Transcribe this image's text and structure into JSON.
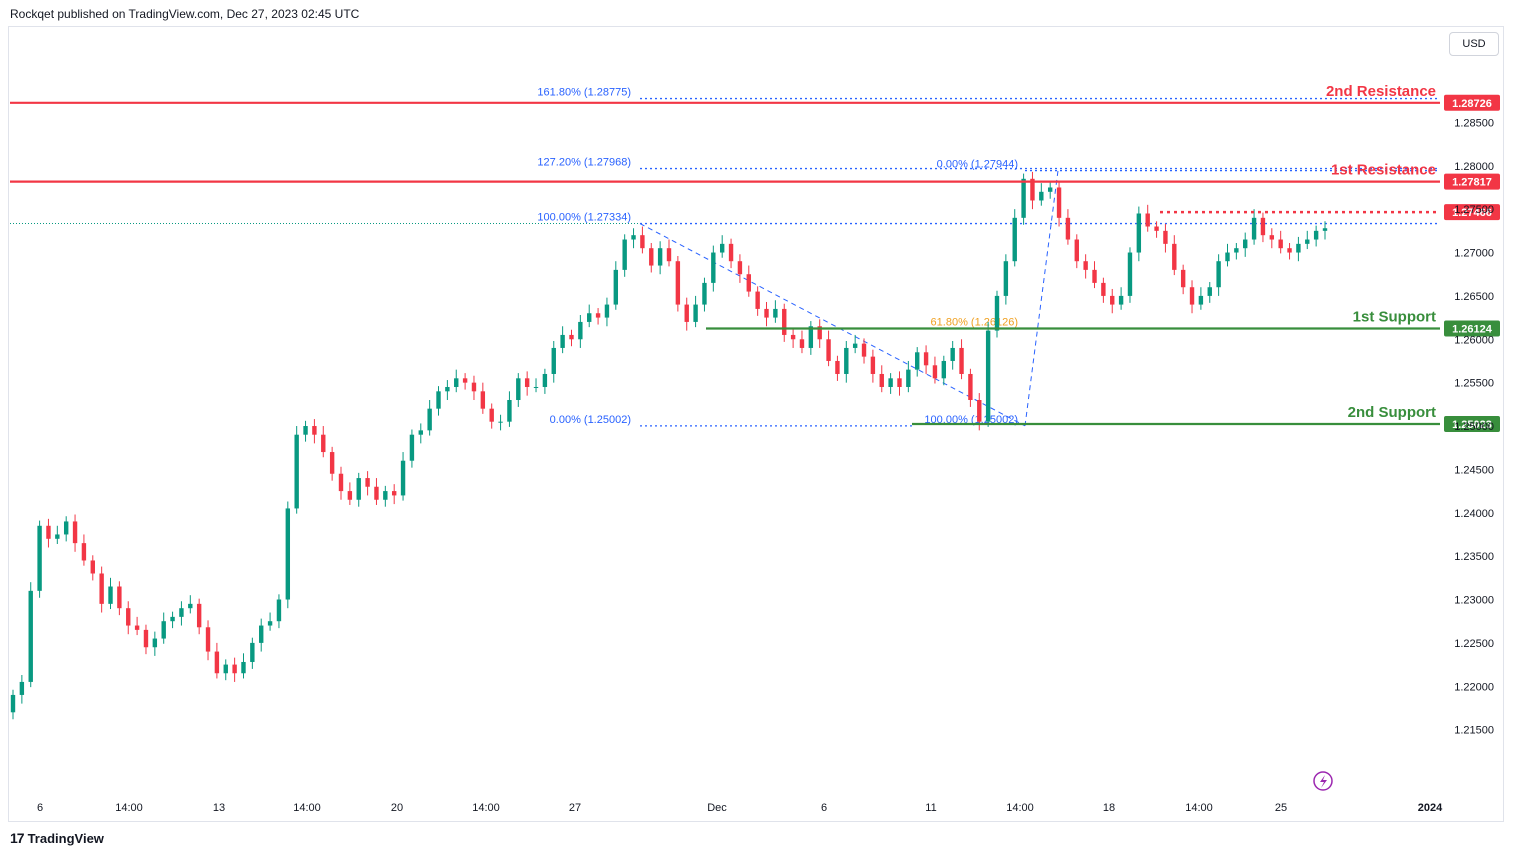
{
  "header": {
    "attribution": "Rockqet published on TradingView.com, Dec 27, 2023 02:45 UTC",
    "currency_button": "USD"
  },
  "footer": {
    "brand": "TradingView"
  },
  "colors": {
    "up": "#089981",
    "down": "#f23645",
    "resistance": "#f23645",
    "support": "#388e3c",
    "fib": "#2962ff",
    "fib_mid": "#f0a020",
    "axis_text": "#131722"
  },
  "chart_data": {
    "type": "candlestick",
    "title": "",
    "y_axis": {
      "ticks": [
        "1.28500",
        "1.28000",
        "1.27500",
        "1.27000",
        "1.26500",
        "1.26000",
        "1.25500",
        "1.25000",
        "1.24500",
        "1.24000",
        "1.23500",
        "1.23000",
        "1.22500",
        "1.22000",
        "1.21500"
      ],
      "range": [
        1.2115,
        1.2945
      ]
    },
    "x_axis": {
      "ticks": [
        "6",
        "14:00",
        "13",
        "14:00",
        "20",
        "14:00",
        "27",
        "Dec",
        "6",
        "11",
        "14:00",
        "18",
        "14:00",
        "25",
        "2024"
      ]
    },
    "levels": [
      {
        "name": "2nd Resistance",
        "price_label": "1.28726",
        "value": 1.28726,
        "kind": "resistance"
      },
      {
        "name": "1st Resistance",
        "price_label": "1.27817",
        "value": 1.27817,
        "kind": "resistance"
      },
      {
        "name": "",
        "price_label": "1.27466",
        "value": 1.27466,
        "kind": "resistance-dotted"
      },
      {
        "name": "1st Support",
        "price_label": "1.26124",
        "value": 1.26124,
        "kind": "support"
      },
      {
        "name": "2nd Support",
        "price_label": "1.25023",
        "value": 1.25023,
        "kind": "support"
      }
    ],
    "fib_labels": [
      {
        "text": "161.80% (1.28775)",
        "value": 1.28775
      },
      {
        "text": "127.20% (1.27968)",
        "value": 1.27968
      },
      {
        "text": "100.00% (1.27334)",
        "value": 1.27334
      },
      {
        "text": "0.00% (1.25002)",
        "value": 1.25002
      },
      {
        "text": "0.00% (1.27944)",
        "value": 1.27944
      },
      {
        "text": "61.80% (1.26126)",
        "value": 1.26126
      },
      {
        "text": "100.00% (1.25002)",
        "value": 1.25002
      }
    ],
    "close_path": [
      1.219,
      1.2205,
      1.231,
      1.2385,
      1.237,
      1.2375,
      1.239,
      1.2365,
      1.2345,
      1.233,
      1.2295,
      1.2315,
      1.229,
      1.227,
      1.2265,
      1.2245,
      1.2255,
      1.2275,
      1.228,
      1.229,
      1.2295,
      1.2268,
      1.224,
      1.2215,
      1.2225,
      1.2215,
      1.2228,
      1.225,
      1.227,
      1.2275,
      1.23,
      1.2405,
      1.249,
      1.25,
      1.249,
      1.247,
      1.2445,
      1.2425,
      1.2415,
      1.244,
      1.243,
      1.2415,
      1.2425,
      1.242,
      1.246,
      1.249,
      1.2495,
      1.252,
      1.254,
      1.2545,
      1.2555,
      1.255,
      1.254,
      1.252,
      1.2505,
      1.2505,
      1.253,
      1.2555,
      1.2545,
      1.2545,
      1.256,
      1.259,
      1.2605,
      1.26,
      1.262,
      1.263,
      1.2625,
      1.264,
      1.268,
      1.2715,
      1.272,
      1.2705,
      1.2685,
      1.2705,
      1.269,
      1.264,
      1.262,
      1.264,
      1.2665,
      1.27,
      1.271,
      1.269,
      1.2675,
      1.2655,
      1.2635,
      1.2625,
      1.2635,
      1.2605,
      1.26,
      1.259,
      1.2615,
      1.26,
      1.2575,
      1.256,
      1.259,
      1.2595,
      1.258,
      1.256,
      1.2545,
      1.2555,
      1.2545,
      1.2565,
      1.2585,
      1.257,
      1.2555,
      1.2575,
      1.259,
      1.256,
      1.253,
      1.2505,
      1.261,
      1.265,
      1.269,
      1.274,
      1.2785,
      1.276,
      1.277,
      1.2775,
      1.274,
      1.2715,
      1.269,
      1.268,
      1.2665,
      1.265,
      1.264,
      1.265,
      1.27,
      1.2745,
      1.273,
      1.2725,
      1.271,
      1.268,
      1.266,
      1.264,
      1.265,
      1.266,
      1.269,
      1.27,
      1.2705,
      1.2715,
      1.274,
      1.272,
      1.2715,
      1.2705,
      1.27,
      1.271,
      1.2715,
      1.2725,
      1.2728
    ]
  }
}
